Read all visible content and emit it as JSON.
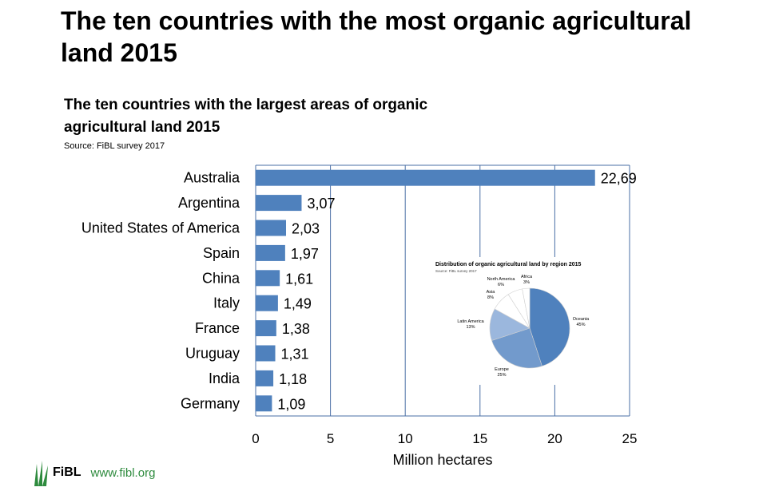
{
  "slide": {
    "title": "The ten countries with the most organic agricultural land 2015"
  },
  "chart_data": [
    {
      "type": "bar",
      "orientation": "horizontal",
      "title": "The ten countries with the largest areas of organic agricultural land 2015",
      "subtitle": "Source: FiBL survey 2017",
      "categories": [
        "Australia",
        "Argentina",
        "United States of America",
        "Spain",
        "China",
        "Italy",
        "France",
        "Uruguay",
        "India",
        "Germany"
      ],
      "values": [
        22.69,
        3.07,
        2.03,
        1.97,
        1.61,
        1.49,
        1.38,
        1.31,
        1.18,
        1.09
      ],
      "value_labels": [
        "22,69",
        "3,07",
        "2,03",
        "1,97",
        "1,61",
        "1,49",
        "1,38",
        "1,31",
        "1,18",
        "1,09"
      ],
      "xlabel": "Million hectares",
      "ylabel": "",
      "xlim": [
        0,
        25
      ],
      "xticks": [
        0,
        5,
        10,
        15,
        20,
        25
      ],
      "grid": "vertical",
      "bar_color": "#4f81bd"
    },
    {
      "type": "pie",
      "title": "Distribution of organic agricultural land by region 2015",
      "subtitle": "Source: FiBL survey 2017",
      "slices": [
        {
          "label": "Oceania",
          "value": 45,
          "value_label": "45%",
          "color": "#4f81bd"
        },
        {
          "label": "Europe",
          "value": 25,
          "value_label": "25%",
          "color": "#729acc"
        },
        {
          "label": "Latin America",
          "value": 13,
          "value_label": "13%",
          "color": "#9bb7dd"
        },
        {
          "label": "Asia",
          "value": 8,
          "value_label": "8%",
          "color": "#ffffff"
        },
        {
          "label": "North America",
          "value": 6,
          "value_label": "6%",
          "color": "#ffffff"
        },
        {
          "label": "Africa",
          "value": 3,
          "value_label": "3%",
          "color": "#ffffff"
        }
      ]
    }
  ],
  "footer": {
    "org": "FiBL",
    "url": "www.fibl.org"
  }
}
